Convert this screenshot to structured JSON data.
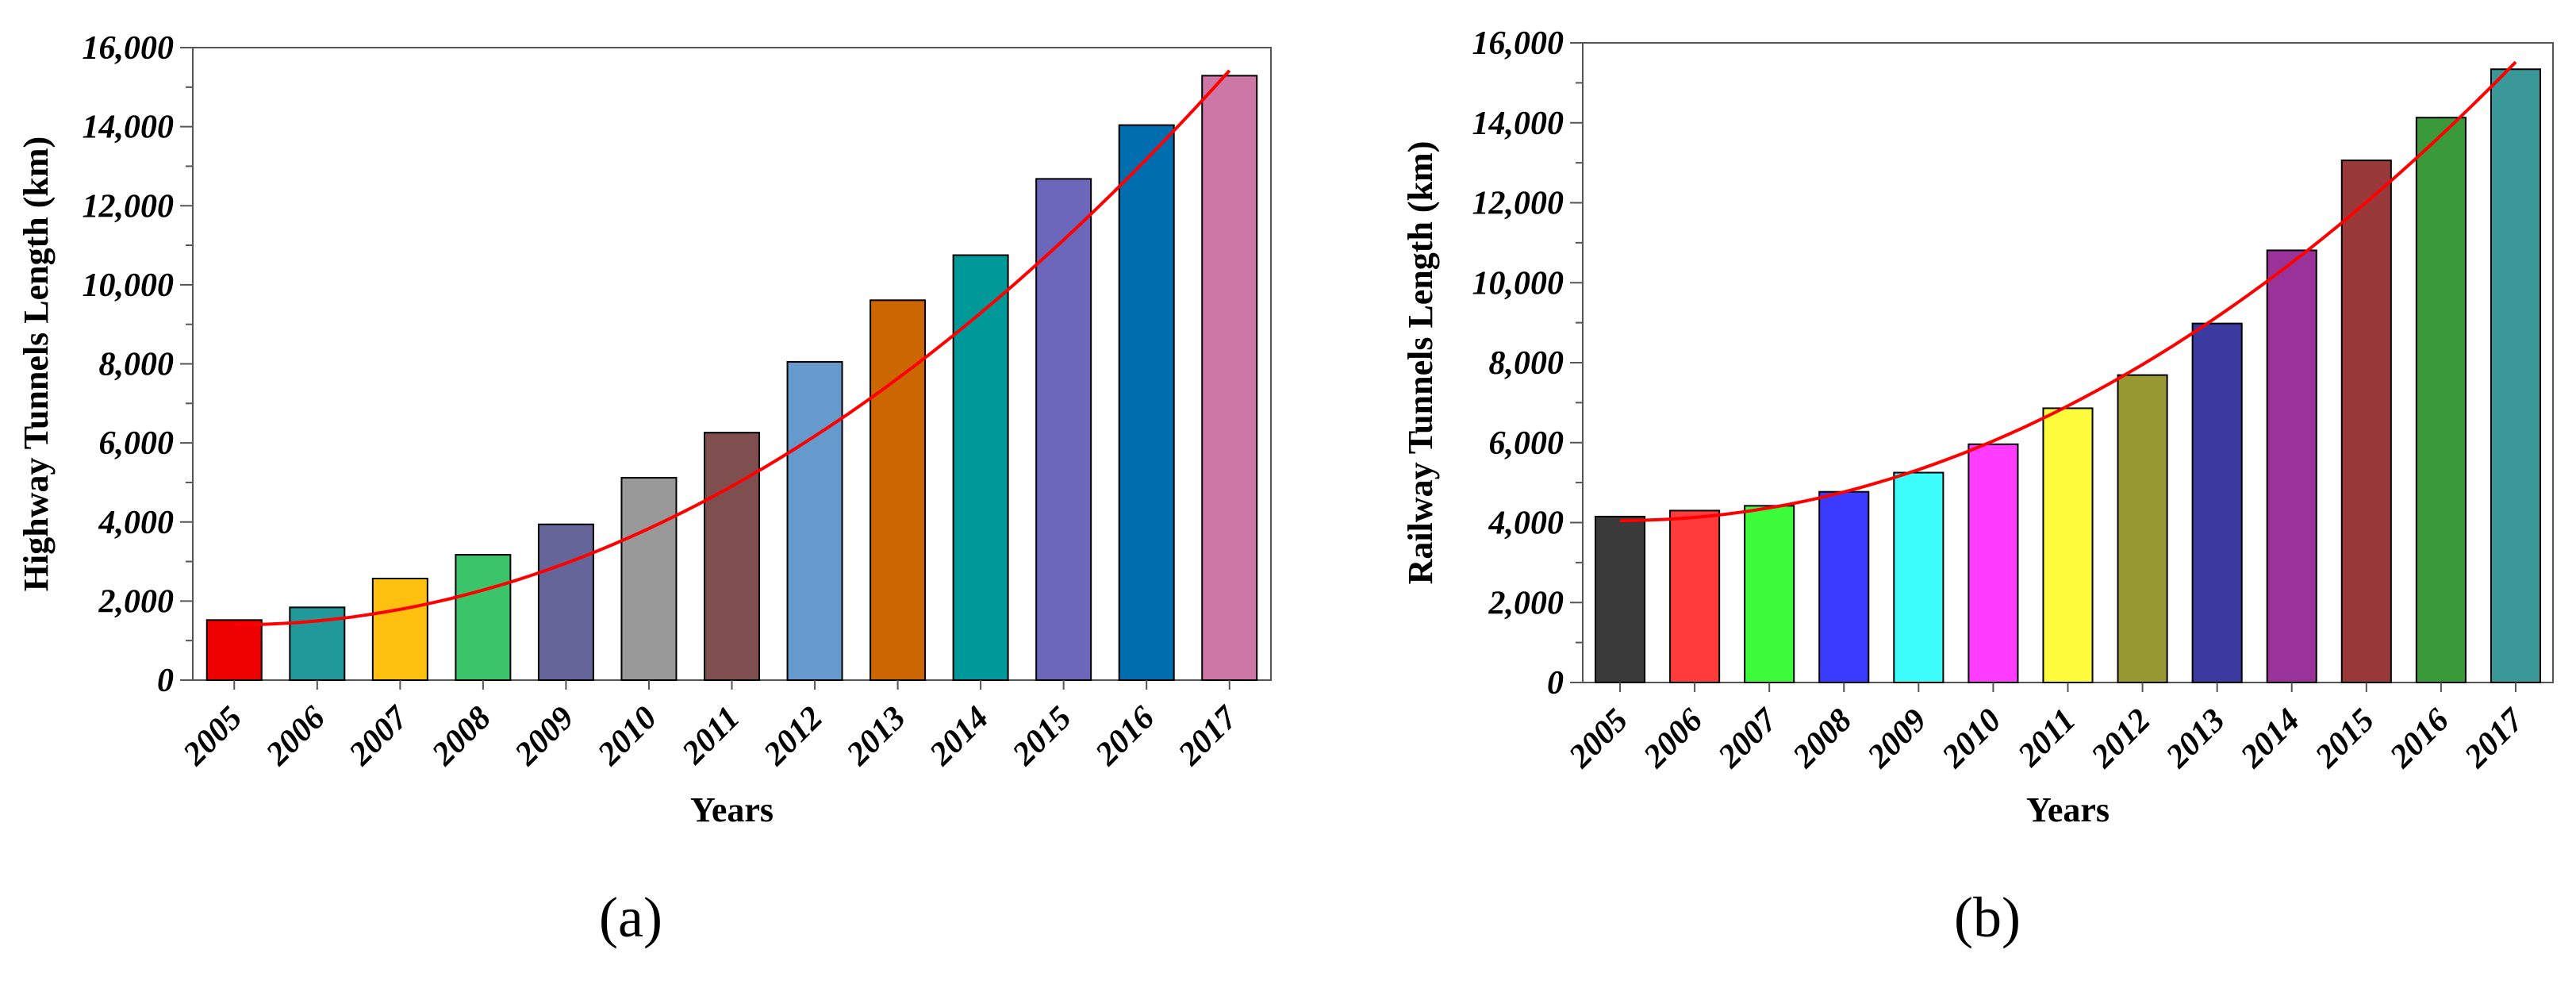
{
  "chart_data": [
    {
      "type": "bar",
      "panel_label": "(a)",
      "title": "",
      "xlabel": "Years",
      "ylabel": "Highway Tunnels Length (km)",
      "categories": [
        "2005",
        "2006",
        "2007",
        "2008",
        "2009",
        "2010",
        "2011",
        "2012",
        "2013",
        "2014",
        "2015",
        "2016",
        "2017"
      ],
      "values": [
        1520,
        1840,
        2570,
        3170,
        3940,
        5120,
        6260,
        8050,
        9610,
        10750,
        12680,
        14040,
        15290
      ],
      "colors": [
        "#ee0000",
        "#21999a",
        "#ffc10f",
        "#3cc46a",
        "#66659a",
        "#999999",
        "#7f4e4e",
        "#6699cc",
        "#cc6600",
        "#009999",
        "#6c67bb",
        "#006eae",
        "#cc77a6"
      ],
      "trendline": {
        "type": "polynomial",
        "color": "#ff0000",
        "start": 1400,
        "end": 15420
      },
      "ylim": [
        0,
        16000
      ],
      "yticks": [
        0,
        2000,
        4000,
        6000,
        8000,
        10000,
        12000,
        14000,
        16000
      ],
      "ytick_labels": [
        "0",
        "2,000",
        "4,000",
        "6,000",
        "8,000",
        "10,000",
        "12,000",
        "14,000",
        "16,000"
      ],
      "grid": false
    },
    {
      "type": "bar",
      "panel_label": "(b)",
      "title": "",
      "xlabel": "Years",
      "ylabel": "Railway Tunnels Length (km)",
      "categories": [
        "2005",
        "2006",
        "2007",
        "2008",
        "2009",
        "2010",
        "2011",
        "2012",
        "2013",
        "2014",
        "2015",
        "2016",
        "2017"
      ],
      "values": [
        4150,
        4300,
        4420,
        4770,
        5250,
        5960,
        6860,
        7690,
        8980,
        10810,
        13060,
        14130,
        15340
      ],
      "colors": [
        "#3a3a3a",
        "#ff3c3c",
        "#3bfb3b",
        "#3b3bff",
        "#3cfcfc",
        "#ff3cff",
        "#fcfc3c",
        "#999933",
        "#3a3aa0",
        "#993399",
        "#993939",
        "#3a9a3a",
        "#3a9898"
      ],
      "trendline": {
        "type": "polynomial",
        "color": "#ff0000",
        "start": 4050,
        "end": 15520
      },
      "ylim": [
        0,
        16000
      ],
      "yticks": [
        0,
        2000,
        4000,
        6000,
        8000,
        10000,
        12000,
        14000,
        16000
      ],
      "ytick_labels": [
        "0",
        "2,000",
        "4,000",
        "6,000",
        "8,000",
        "10,000",
        "12,000",
        "14,000",
        "16,000"
      ],
      "grid": false
    }
  ]
}
